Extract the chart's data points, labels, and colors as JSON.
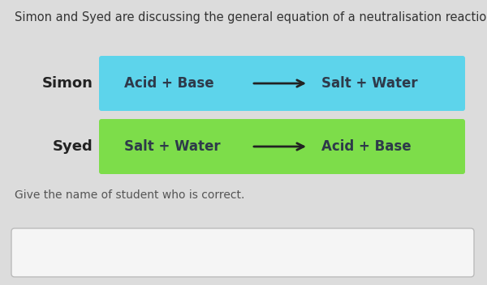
{
  "background_color": "#dcdcdc",
  "title_text": "Simon and Syed are discussing the general equation of a neutralisation reaction.",
  "title_fontsize": 10.5,
  "title_color": "#333333",
  "simon_label": "Simon",
  "syed_label": "Syed",
  "simon_box_color": "#5dd4eb",
  "syed_box_color": "#7ddd4a",
  "simon_left_text": "Acid + Base",
  "simon_right_text": "Salt + Water",
  "syed_left_text": "Salt + Water",
  "syed_right_text": "Acid + Base",
  "equation_text_color": "#2e3a4a",
  "equation_fontsize": 12,
  "label_fontsize": 13,
  "label_color": "#222222",
  "label_fontweight": "bold",
  "question_text": "Give the name of student who is correct.",
  "question_fontsize": 10,
  "question_color": "#555555",
  "answer_box_color": "#f5f5f5",
  "answer_box_edge_color": "#bbbbbb",
  "arrow_color": "#222222",
  "arrow_lw": 2.0
}
